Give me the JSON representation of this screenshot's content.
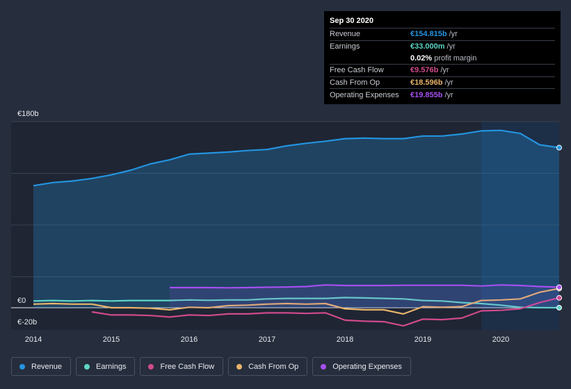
{
  "chart_data": {
    "type": "area",
    "currency_unit": "€b",
    "y_ticks": [
      {
        "value": 180,
        "label": "€180b"
      },
      {
        "value": 0,
        "label": "€0"
      },
      {
        "value": -20,
        "label": "€-20b"
      }
    ],
    "ylim": [
      -20,
      180
    ],
    "xlim": [
      2014.0,
      2020.75
    ],
    "x_ticks": [
      2014,
      2015,
      2016,
      2017,
      2018,
      2019,
      2020
    ],
    "x_tick_labels": [
      "2014",
      "2015",
      "2016",
      "2017",
      "2018",
      "2019",
      "2020"
    ],
    "highlight_start": 2019.75,
    "series": [
      {
        "name": "Revenue",
        "color": "#2394df",
        "fill": true,
        "points": [
          [
            2014.0,
            118
          ],
          [
            2014.25,
            121
          ],
          [
            2014.5,
            122.5
          ],
          [
            2014.75,
            125
          ],
          [
            2015.0,
            128.5
          ],
          [
            2015.25,
            133
          ],
          [
            2015.5,
            139
          ],
          [
            2015.75,
            143
          ],
          [
            2016.0,
            148.5
          ],
          [
            2016.25,
            149.5
          ],
          [
            2016.5,
            150.5
          ],
          [
            2016.75,
            152
          ],
          [
            2017.0,
            153
          ],
          [
            2017.25,
            156.5
          ],
          [
            2017.5,
            159
          ],
          [
            2017.75,
            161
          ],
          [
            2018.0,
            163.5
          ],
          [
            2018.25,
            164
          ],
          [
            2018.5,
            163.5
          ],
          [
            2018.75,
            163.5
          ],
          [
            2019.0,
            166
          ],
          [
            2019.25,
            166
          ],
          [
            2019.5,
            168
          ],
          [
            2019.75,
            171
          ],
          [
            2020.0,
            171.5
          ],
          [
            2020.25,
            168.5
          ],
          [
            2020.5,
            157.5
          ],
          [
            2020.75,
            154.8
          ]
        ]
      },
      {
        "name": "Earnings",
        "color": "#5ed6c5",
        "fill": false,
        "points": [
          [
            2014.0,
            6.5
          ],
          [
            2014.25,
            7
          ],
          [
            2014.5,
            6.5
          ],
          [
            2014.75,
            7
          ],
          [
            2015.0,
            6.5
          ],
          [
            2015.25,
            7
          ],
          [
            2015.5,
            7
          ],
          [
            2015.75,
            7
          ],
          [
            2016.0,
            7.5
          ],
          [
            2016.25,
            7.2
          ],
          [
            2016.5,
            7.5
          ],
          [
            2016.75,
            7.5
          ],
          [
            2017.0,
            8.5
          ],
          [
            2017.25,
            9
          ],
          [
            2017.5,
            9
          ],
          [
            2017.75,
            9
          ],
          [
            2018.0,
            9.8
          ],
          [
            2018.25,
            9.5
          ],
          [
            2018.5,
            9
          ],
          [
            2018.75,
            8.5
          ],
          [
            2019.0,
            7
          ],
          [
            2019.25,
            6.5
          ],
          [
            2019.5,
            5
          ],
          [
            2019.75,
            4
          ],
          [
            2020.0,
            2.5
          ],
          [
            2020.25,
            0.5
          ],
          [
            2020.5,
            0.1
          ],
          [
            2020.75,
            0.033
          ]
        ]
      },
      {
        "name": "Free Cash Flow",
        "color": "#d04a8c",
        "fill": false,
        "points": [
          [
            2014.75,
            -4
          ],
          [
            2015.0,
            -7
          ],
          [
            2015.25,
            -7
          ],
          [
            2015.5,
            -7.5
          ],
          [
            2015.75,
            -9
          ],
          [
            2016.0,
            -7
          ],
          [
            2016.25,
            -7.5
          ],
          [
            2016.5,
            -6
          ],
          [
            2016.75,
            -6
          ],
          [
            2017.0,
            -5
          ],
          [
            2017.25,
            -5
          ],
          [
            2017.5,
            -5.5
          ],
          [
            2017.75,
            -5
          ],
          [
            2018.0,
            -12
          ],
          [
            2018.25,
            -13
          ],
          [
            2018.5,
            -13.5
          ],
          [
            2018.75,
            -17.5
          ],
          [
            2019.0,
            -11
          ],
          [
            2019.25,
            -11.5
          ],
          [
            2019.5,
            -10
          ],
          [
            2019.75,
            -3
          ],
          [
            2020.0,
            -2.5
          ],
          [
            2020.25,
            -1
          ],
          [
            2020.5,
            5
          ],
          [
            2020.75,
            9.576
          ]
        ]
      },
      {
        "name": "Cash From Op",
        "color": "#e8b46a",
        "fill": false,
        "points": [
          [
            2014.0,
            3.5
          ],
          [
            2014.25,
            4
          ],
          [
            2014.5,
            3.5
          ],
          [
            2014.75,
            3.5
          ],
          [
            2015.0,
            0
          ],
          [
            2015.25,
            0
          ],
          [
            2015.5,
            -0.5
          ],
          [
            2015.75,
            -2
          ],
          [
            2016.0,
            0.5
          ],
          [
            2016.25,
            0
          ],
          [
            2016.5,
            2
          ],
          [
            2016.75,
            2.5
          ],
          [
            2017.0,
            3.5
          ],
          [
            2017.25,
            4
          ],
          [
            2017.5,
            3.5
          ],
          [
            2017.75,
            4
          ],
          [
            2018.0,
            -1
          ],
          [
            2018.25,
            -2
          ],
          [
            2018.5,
            -2
          ],
          [
            2018.75,
            -6
          ],
          [
            2019.0,
            1
          ],
          [
            2019.25,
            0.5
          ],
          [
            2019.5,
            1
          ],
          [
            2019.75,
            7
          ],
          [
            2020.0,
            7.5
          ],
          [
            2020.25,
            8.5
          ],
          [
            2020.5,
            15
          ],
          [
            2020.75,
            18.596
          ]
        ]
      },
      {
        "name": "Operating Expenses",
        "color": "#a64ff0",
        "fill": false,
        "points": [
          [
            2015.75,
            19.5
          ],
          [
            2016.0,
            19.5
          ],
          [
            2016.25,
            19.5
          ],
          [
            2016.5,
            19.3
          ],
          [
            2016.75,
            19.5
          ],
          [
            2017.0,
            19.8
          ],
          [
            2017.25,
            20
          ],
          [
            2017.5,
            20.5
          ],
          [
            2017.75,
            22
          ],
          [
            2018.0,
            21.5
          ],
          [
            2018.25,
            21.5
          ],
          [
            2018.5,
            21.5
          ],
          [
            2018.75,
            21.7
          ],
          [
            2019.0,
            21.7
          ],
          [
            2019.25,
            21.7
          ],
          [
            2019.5,
            21.7
          ],
          [
            2019.75,
            21
          ],
          [
            2020.0,
            22
          ],
          [
            2020.25,
            21.5
          ],
          [
            2020.5,
            20.5
          ],
          [
            2020.75,
            19.855
          ]
        ]
      }
    ]
  },
  "tooltip": {
    "date": "Sep 30 2020",
    "rows": [
      {
        "label": "Revenue",
        "value": "€154.815b",
        "unit": "/yr",
        "color": "#2394df"
      },
      {
        "label": "Earnings",
        "value": "€33.000m",
        "unit": "/yr",
        "color": "#5ed6c5"
      },
      {
        "label": "",
        "value": "0.02%",
        "unit": "profit margin",
        "color": "#ffffff"
      },
      {
        "label": "Free Cash Flow",
        "value": "€9.576b",
        "unit": "/yr",
        "color": "#d04a8c"
      },
      {
        "label": "Cash From Op",
        "value": "€18.596b",
        "unit": "/yr",
        "color": "#e8b46a"
      },
      {
        "label": "Operating Expenses",
        "value": "€19.855b",
        "unit": "/yr",
        "color": "#a64ff0"
      }
    ]
  },
  "legend": [
    {
      "label": "Revenue",
      "color": "#2394df"
    },
    {
      "label": "Earnings",
      "color": "#5ed6c5"
    },
    {
      "label": "Free Cash Flow",
      "color": "#d04a8c"
    },
    {
      "label": "Cash From Op",
      "color": "#e8b46a"
    },
    {
      "label": "Operating Expenses",
      "color": "#a64ff0"
    }
  ]
}
